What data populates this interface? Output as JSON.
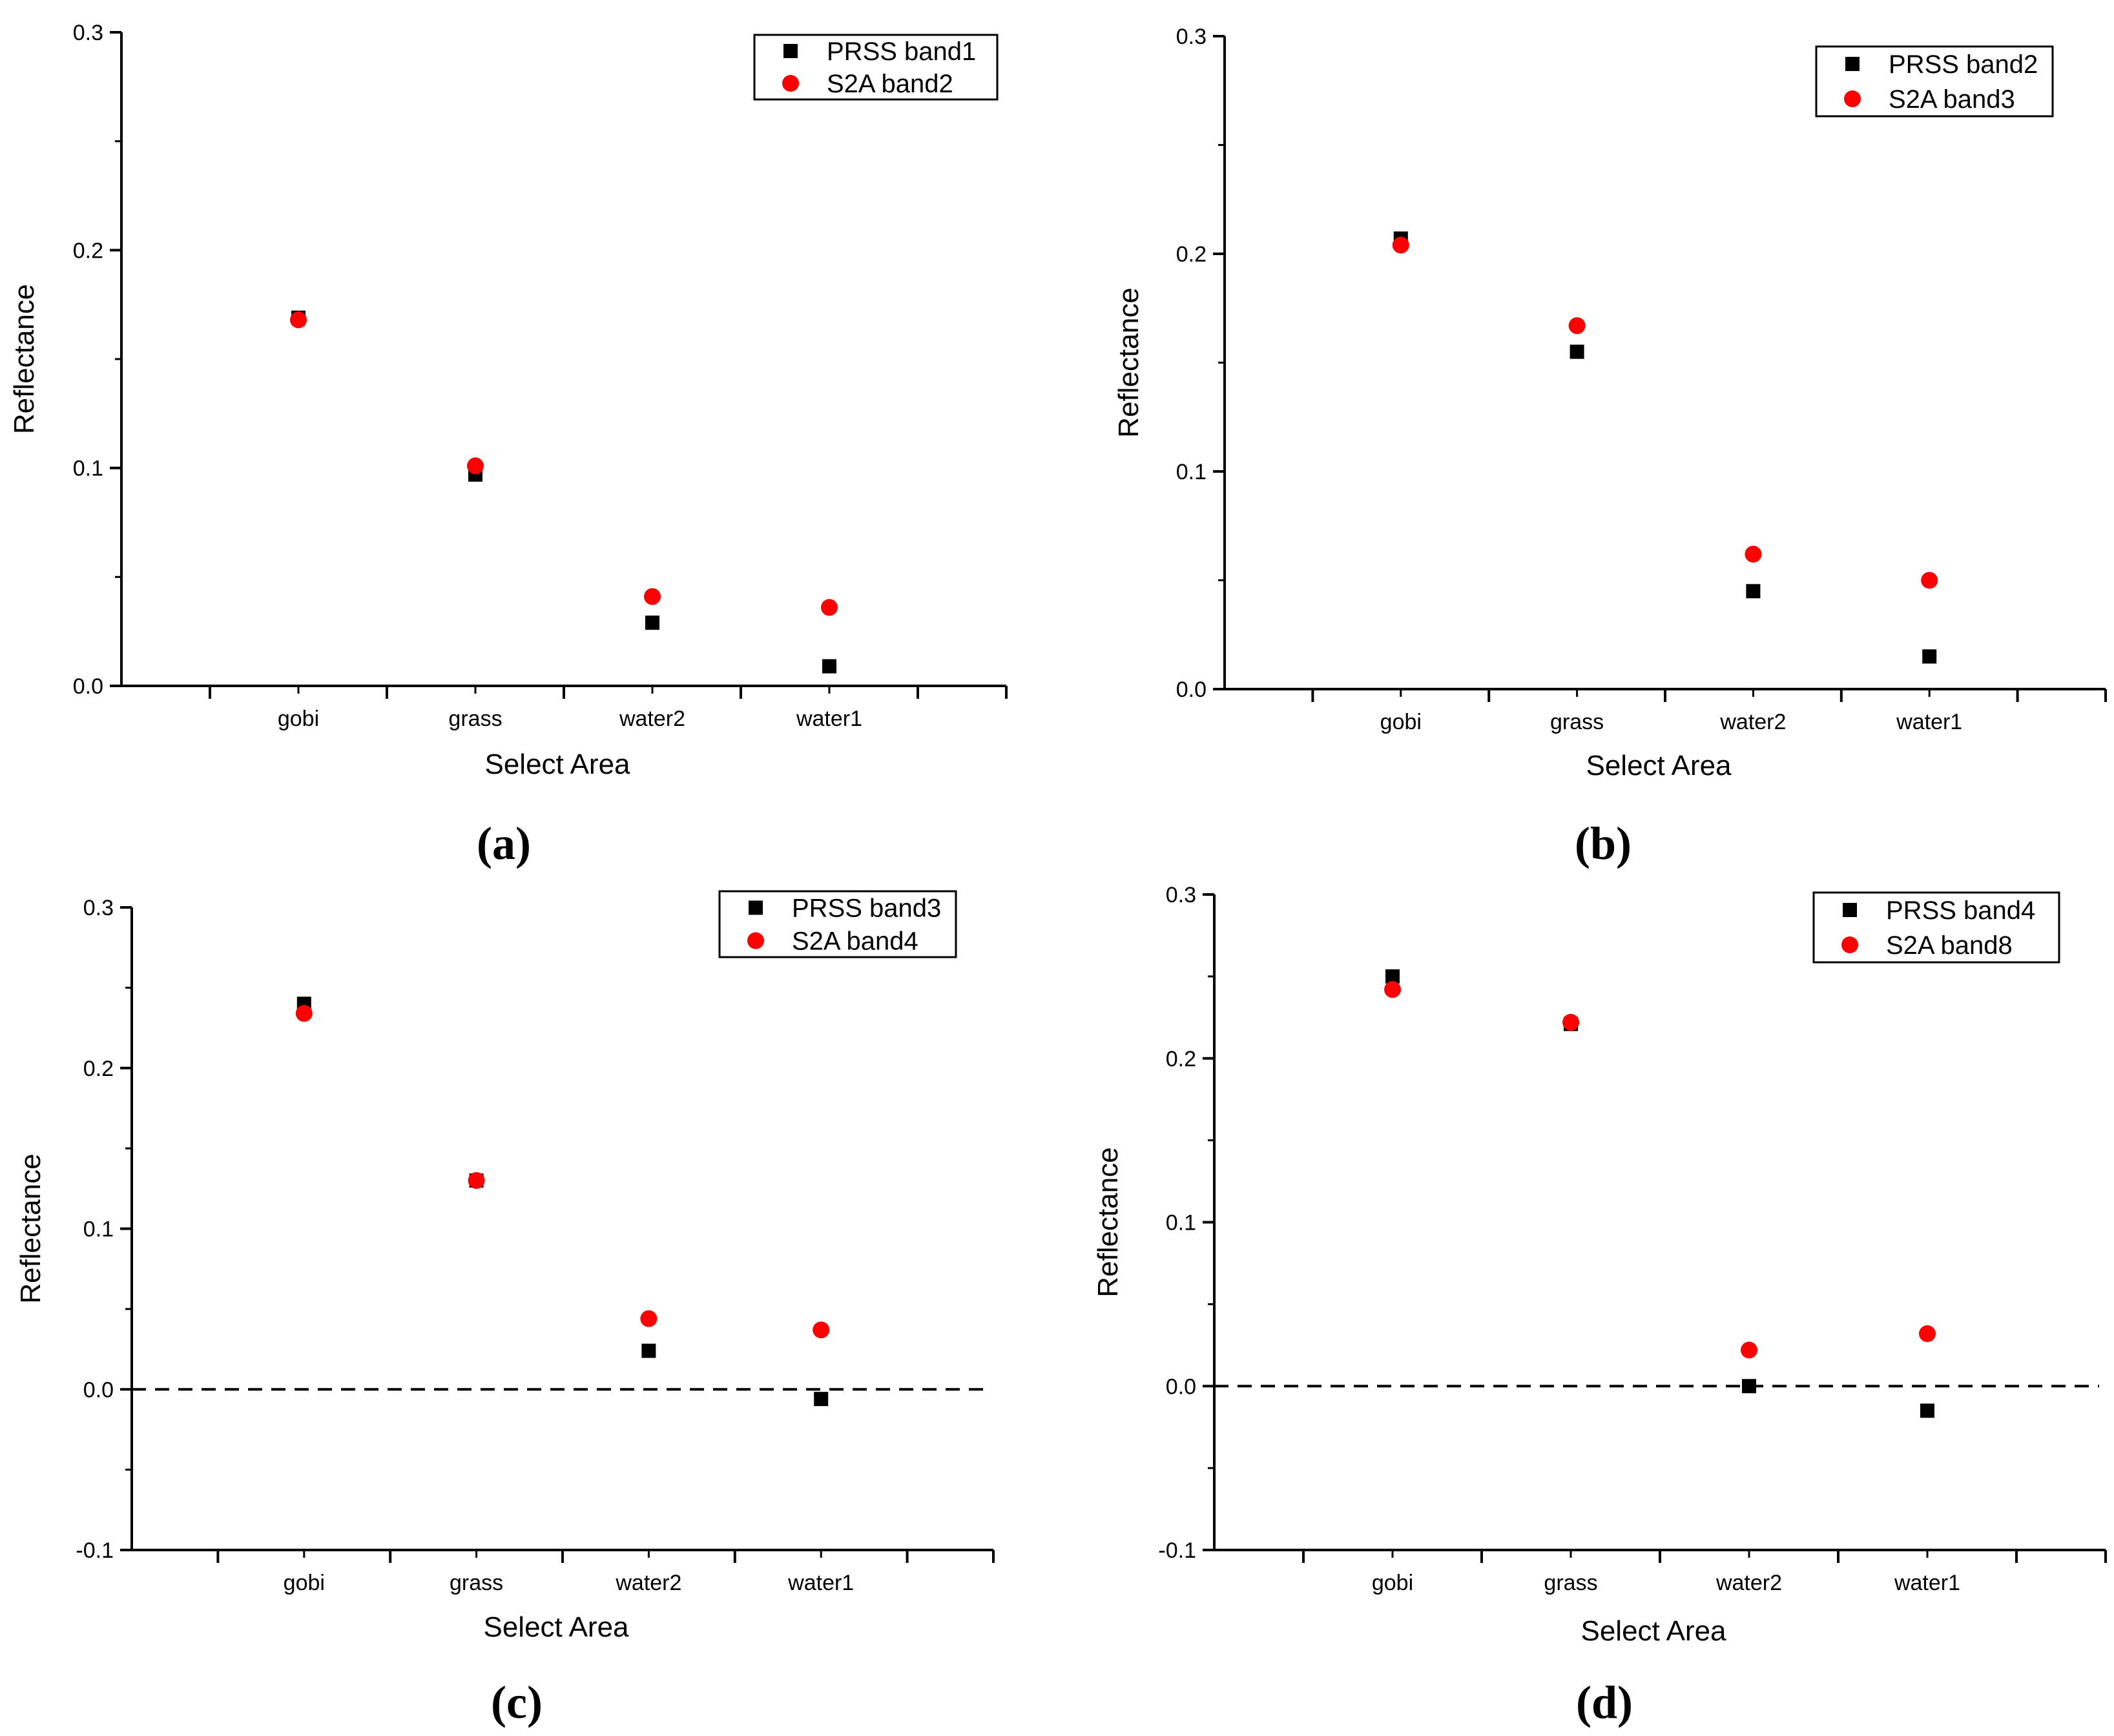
{
  "colors": {
    "series_a": "#000000",
    "series_b": "#ff0000",
    "axis": "#000000",
    "background": "#ffffff"
  },
  "chart_data": [
    {
      "type": "scatter",
      "panel_label": "(a)",
      "xlabel": "Select Area",
      "ylabel": "Reflectance",
      "categories": [
        "gobi",
        "grass",
        "water2",
        "water1"
      ],
      "ylim": [
        0.0,
        0.3
      ],
      "yticks": [
        0.0,
        0.1,
        0.2,
        0.3
      ],
      "ytick_labels": [
        "0.0",
        "0.1",
        "0.2",
        "0.3"
      ],
      "zero_line": false,
      "legend_position": "top-right",
      "series": [
        {
          "name": "PRSS band1",
          "marker": "square",
          "color": "#000000",
          "values": [
            0.169,
            0.097,
            0.029,
            0.009
          ]
        },
        {
          "name": "S2A band2",
          "marker": "circle",
          "color": "#ff0000",
          "values": [
            0.168,
            0.101,
            0.041,
            0.036
          ]
        }
      ]
    },
    {
      "type": "scatter",
      "panel_label": "(b)",
      "xlabel": "Select Area",
      "ylabel": "Reflectance",
      "categories": [
        "gobi",
        "grass",
        "water2",
        "water1"
      ],
      "ylim": [
        0.0,
        0.3
      ],
      "yticks": [
        0.0,
        0.1,
        0.2,
        0.3
      ],
      "ytick_labels": [
        "0.0",
        "0.1",
        "0.2",
        "0.3"
      ],
      "zero_line": false,
      "legend_position": "top-right",
      "series": [
        {
          "name": "PRSS band2",
          "marker": "square",
          "color": "#000000",
          "values": [
            0.207,
            0.155,
            0.045,
            0.015
          ]
        },
        {
          "name": "S2A band3",
          "marker": "circle",
          "color": "#ff0000",
          "values": [
            0.204,
            0.167,
            0.062,
            0.05
          ]
        }
      ]
    },
    {
      "type": "scatter",
      "panel_label": "(c)",
      "xlabel": "Select Area",
      "ylabel": "Reflectance",
      "categories": [
        "gobi",
        "grass",
        "water2",
        "water1"
      ],
      "ylim": [
        -0.1,
        0.3
      ],
      "yticks": [
        -0.1,
        0.0,
        0.1,
        0.2,
        0.3
      ],
      "ytick_labels": [
        "-0.1",
        "0.0",
        "0.1",
        "0.2",
        "0.3"
      ],
      "zero_line": true,
      "legend_position": "top-right",
      "series": [
        {
          "name": "PRSS band3",
          "marker": "square",
          "color": "#000000",
          "values": [
            0.24,
            0.13,
            0.024,
            -0.006
          ]
        },
        {
          "name": "S2A band4",
          "marker": "circle",
          "color": "#ff0000",
          "values": [
            0.234,
            0.13,
            0.044,
            0.037
          ]
        }
      ]
    },
    {
      "type": "scatter",
      "panel_label": "(d)",
      "xlabel": "Select Area",
      "ylabel": "Reflectance",
      "categories": [
        "gobi",
        "grass",
        "water2",
        "water1"
      ],
      "ylim": [
        -0.1,
        0.3
      ],
      "yticks": [
        -0.1,
        0.0,
        0.1,
        0.2,
        0.3
      ],
      "ytick_labels": [
        "-0.1",
        "0.0",
        "0.1",
        "0.2",
        "0.3"
      ],
      "zero_line": true,
      "legend_position": "top-right",
      "series": [
        {
          "name": "PRSS band4",
          "marker": "square",
          "color": "#000000",
          "values": [
            0.25,
            0.221,
            0.0,
            -0.015
          ]
        },
        {
          "name": "S2A band8",
          "marker": "circle",
          "color": "#ff0000",
          "values": [
            0.242,
            0.222,
            0.022,
            0.032
          ]
        }
      ]
    }
  ]
}
